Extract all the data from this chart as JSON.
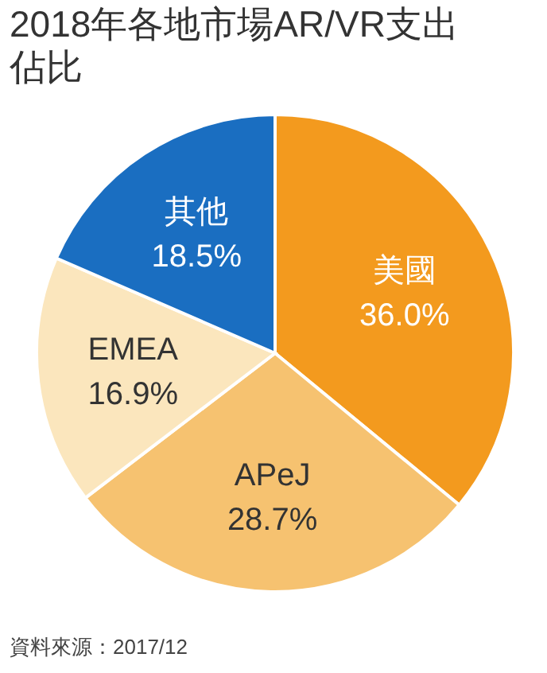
{
  "chart_data": {
    "type": "pie",
    "title": "2018年各地市場AR/VR支出佔比",
    "categories": [
      "美國",
      "APeJ",
      "EMEA",
      "其他"
    ],
    "values": [
      36.0,
      28.7,
      16.9,
      18.5
    ],
    "colors": [
      "#f39a1e",
      "#f6c270",
      "#fbe6bd",
      "#1a6ec1"
    ],
    "value_labels": [
      "36.0%",
      "28.7%",
      "16.9%",
      "18.5%"
    ],
    "annotations": [
      "資料來源：2017/12"
    ]
  }
}
